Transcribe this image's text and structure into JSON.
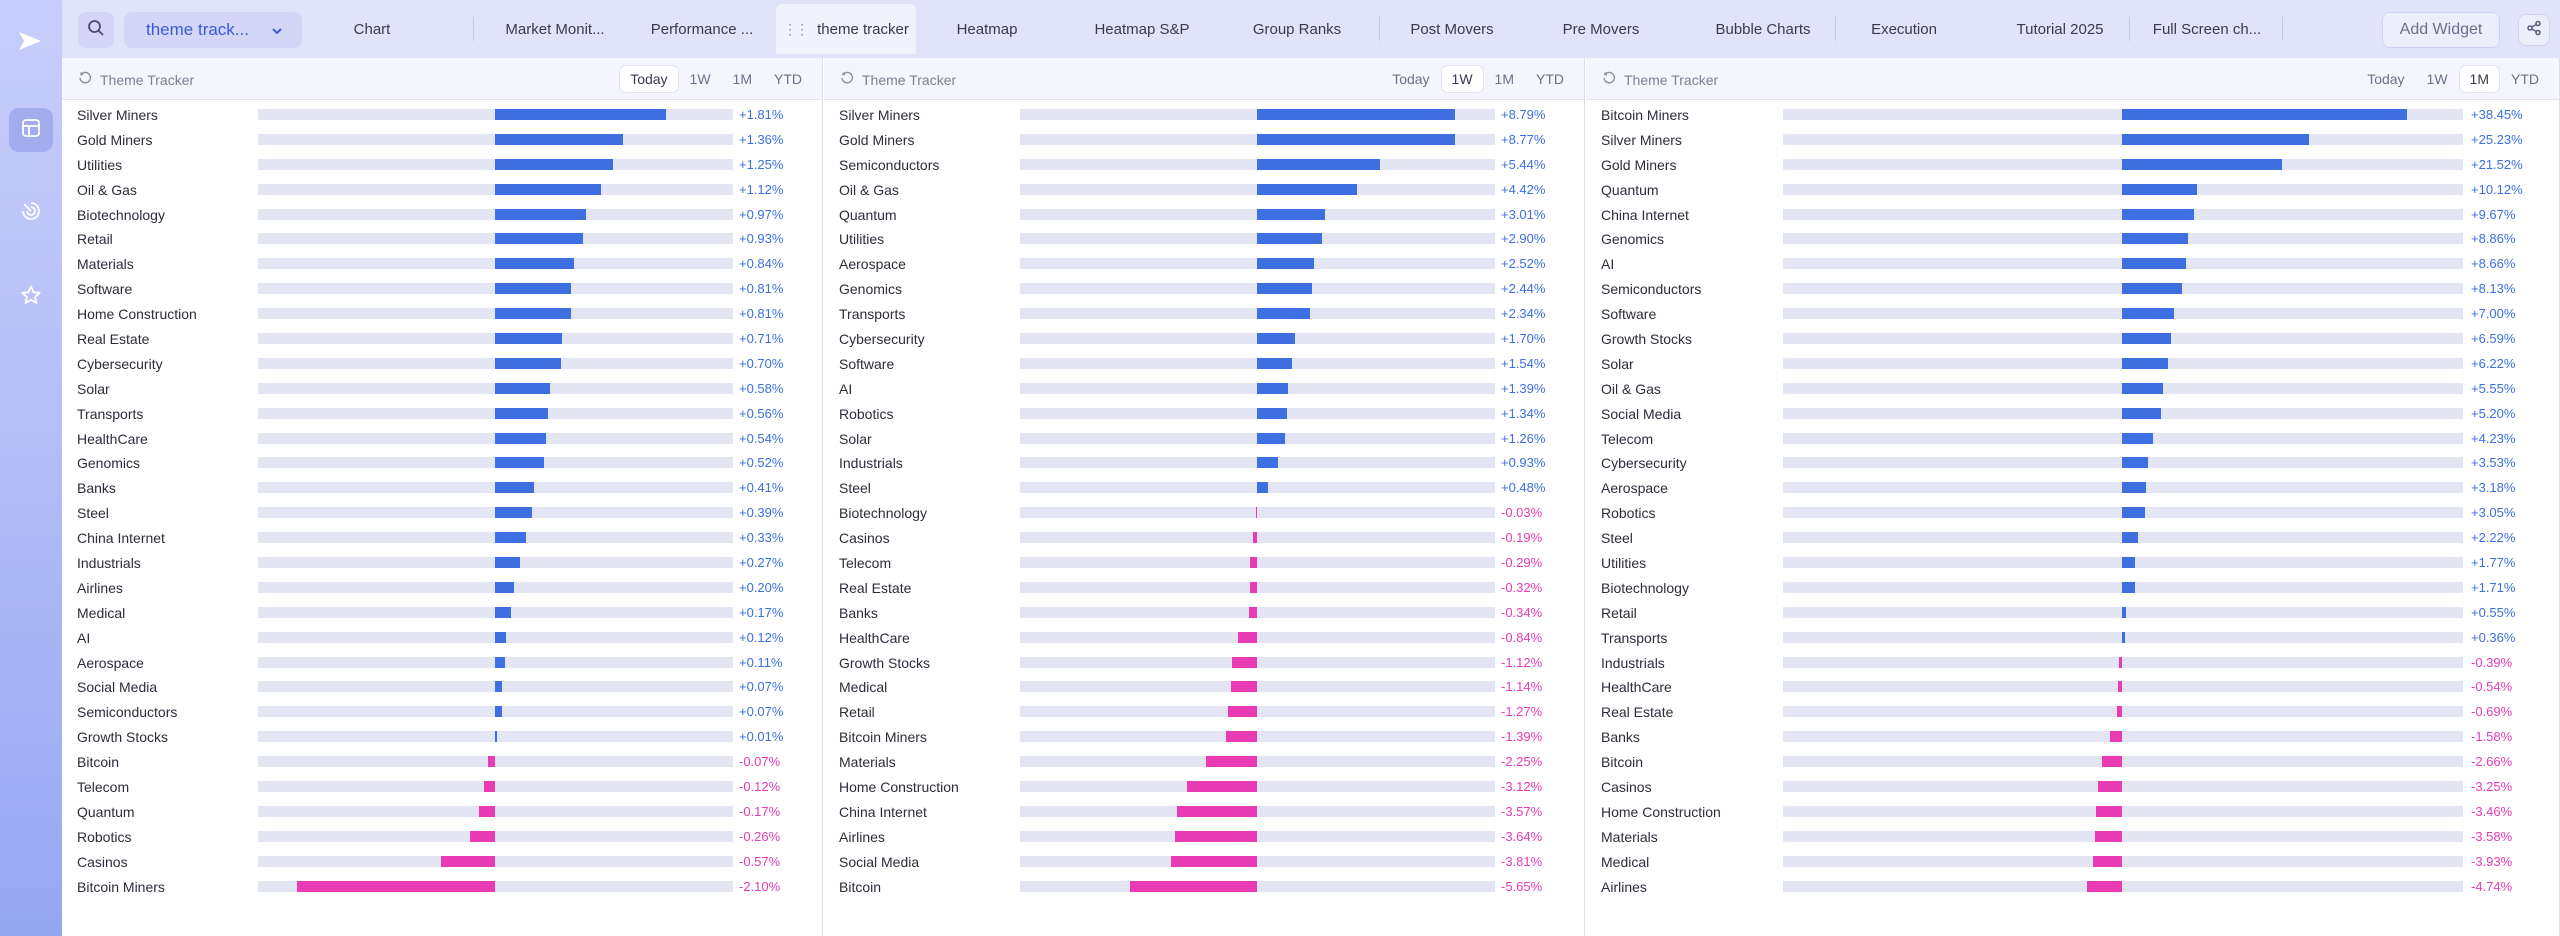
{
  "sidebar": {
    "logo": "play-logo-icon",
    "items": [
      {
        "icon": "dashboard-icon",
        "active": true
      },
      {
        "icon": "radar-icon",
        "active": false
      },
      {
        "icon": "star-icon",
        "active": false
      }
    ]
  },
  "topbar": {
    "dashboard_select": "theme track...",
    "tabs": [
      "Chart",
      "Market Monit...",
      "Performance ...",
      "theme tracker",
      "Heatmap",
      "Heatmap S&P",
      "Group Ranks",
      "Post Movers",
      "Pre Movers",
      "Bubble Charts",
      "Execution",
      "Tutorial 2025",
      "Full Screen ch..."
    ],
    "active_tab": "theme tracker",
    "add_widget": "Add Widget"
  },
  "colors": {
    "positive": "#3d6fe0",
    "negative": "#e83bb4",
    "track": "#e4e5f3"
  },
  "panels": [
    {
      "title": "Theme Tracker",
      "periods": [
        "Today",
        "1W",
        "1M",
        "YTD"
      ],
      "active_period": "Today",
      "scale": 2.1,
      "rows": [
        {
          "label": "Silver Miners",
          "value": 1.81,
          "display": "+1.81%"
        },
        {
          "label": "Gold Miners",
          "value": 1.36,
          "display": "+1.36%"
        },
        {
          "label": "Utilities",
          "value": 1.25,
          "display": "+1.25%"
        },
        {
          "label": "Oil & Gas",
          "value": 1.12,
          "display": "+1.12%"
        },
        {
          "label": "Biotechnology",
          "value": 0.97,
          "display": "+0.97%"
        },
        {
          "label": "Retail",
          "value": 0.93,
          "display": "+0.93%"
        },
        {
          "label": "Materials",
          "value": 0.84,
          "display": "+0.84%"
        },
        {
          "label": "Software",
          "value": 0.81,
          "display": "+0.81%"
        },
        {
          "label": "Home Construction",
          "value": 0.81,
          "display": "+0.81%"
        },
        {
          "label": "Real Estate",
          "value": 0.71,
          "display": "+0.71%"
        },
        {
          "label": "Cybersecurity",
          "value": 0.7,
          "display": "+0.70%"
        },
        {
          "label": "Solar",
          "value": 0.58,
          "display": "+0.58%"
        },
        {
          "label": "Transports",
          "value": 0.56,
          "display": "+0.56%"
        },
        {
          "label": "HealthCare",
          "value": 0.54,
          "display": "+0.54%"
        },
        {
          "label": "Genomics",
          "value": 0.52,
          "display": "+0.52%"
        },
        {
          "label": "Banks",
          "value": 0.41,
          "display": "+0.41%"
        },
        {
          "label": "Steel",
          "value": 0.39,
          "display": "+0.39%"
        },
        {
          "label": "China Internet",
          "value": 0.33,
          "display": "+0.33%"
        },
        {
          "label": "Industrials",
          "value": 0.27,
          "display": "+0.27%"
        },
        {
          "label": "Airlines",
          "value": 0.2,
          "display": "+0.20%"
        },
        {
          "label": "Medical",
          "value": 0.17,
          "display": "+0.17%"
        },
        {
          "label": "AI",
          "value": 0.12,
          "display": "+0.12%"
        },
        {
          "label": "Aerospace",
          "value": 0.11,
          "display": "+0.11%"
        },
        {
          "label": "Social Media",
          "value": 0.07,
          "display": "+0.07%"
        },
        {
          "label": "Semiconductors",
          "value": 0.07,
          "display": "+0.07%"
        },
        {
          "label": "Growth Stocks",
          "value": 0.01,
          "display": "+0.01%"
        },
        {
          "label": "Bitcoin",
          "value": -0.07,
          "display": "-0.07%"
        },
        {
          "label": "Telecom",
          "value": -0.12,
          "display": "-0.12%"
        },
        {
          "label": "Quantum",
          "value": -0.17,
          "display": "-0.17%"
        },
        {
          "label": "Robotics",
          "value": -0.26,
          "display": "-0.26%"
        },
        {
          "label": "Casinos",
          "value": -0.57,
          "display": "-0.57%"
        },
        {
          "label": "Bitcoin Miners",
          "value": -2.1,
          "display": "-2.10%"
        }
      ]
    },
    {
      "title": "Theme Tracker",
      "periods": [
        "Today",
        "1W",
        "1M",
        "YTD"
      ],
      "active_period": "1W",
      "scale": 8.79,
      "rows": [
        {
          "label": "Silver Miners",
          "value": 8.79,
          "display": "+8.79%"
        },
        {
          "label": "Gold Miners",
          "value": 8.77,
          "display": "+8.77%"
        },
        {
          "label": "Semiconductors",
          "value": 5.44,
          "display": "+5.44%"
        },
        {
          "label": "Oil & Gas",
          "value": 4.42,
          "display": "+4.42%"
        },
        {
          "label": "Quantum",
          "value": 3.01,
          "display": "+3.01%"
        },
        {
          "label": "Utilities",
          "value": 2.9,
          "display": "+2.90%"
        },
        {
          "label": "Aerospace",
          "value": 2.52,
          "display": "+2.52%"
        },
        {
          "label": "Genomics",
          "value": 2.44,
          "display": "+2.44%"
        },
        {
          "label": "Transports",
          "value": 2.34,
          "display": "+2.34%"
        },
        {
          "label": "Cybersecurity",
          "value": 1.7,
          "display": "+1.70%"
        },
        {
          "label": "Software",
          "value": 1.54,
          "display": "+1.54%"
        },
        {
          "label": "AI",
          "value": 1.39,
          "display": "+1.39%"
        },
        {
          "label": "Robotics",
          "value": 1.34,
          "display": "+1.34%"
        },
        {
          "label": "Solar",
          "value": 1.26,
          "display": "+1.26%"
        },
        {
          "label": "Industrials",
          "value": 0.93,
          "display": "+0.93%"
        },
        {
          "label": "Steel",
          "value": 0.48,
          "display": "+0.48%"
        },
        {
          "label": "Biotechnology",
          "value": -0.03,
          "display": "-0.03%"
        },
        {
          "label": "Casinos",
          "value": -0.19,
          "display": "-0.19%"
        },
        {
          "label": "Telecom",
          "value": -0.29,
          "display": "-0.29%"
        },
        {
          "label": "Real Estate",
          "value": -0.32,
          "display": "-0.32%"
        },
        {
          "label": "Banks",
          "value": -0.34,
          "display": "-0.34%"
        },
        {
          "label": "HealthCare",
          "value": -0.84,
          "display": "-0.84%"
        },
        {
          "label": "Growth Stocks",
          "value": -1.12,
          "display": "-1.12%"
        },
        {
          "label": "Medical",
          "value": -1.14,
          "display": "-1.14%"
        },
        {
          "label": "Retail",
          "value": -1.27,
          "display": "-1.27%"
        },
        {
          "label": "Bitcoin Miners",
          "value": -1.39,
          "display": "-1.39%"
        },
        {
          "label": "Materials",
          "value": -2.25,
          "display": "-2.25%"
        },
        {
          "label": "Home Construction",
          "value": -3.12,
          "display": "-3.12%"
        },
        {
          "label": "China Internet",
          "value": -3.57,
          "display": "-3.57%"
        },
        {
          "label": "Airlines",
          "value": -3.64,
          "display": "-3.64%"
        },
        {
          "label": "Social Media",
          "value": -3.81,
          "display": "-3.81%"
        },
        {
          "label": "Bitcoin",
          "value": -5.65,
          "display": "-5.65%"
        }
      ]
    },
    {
      "title": "Theme Tracker",
      "periods": [
        "Today",
        "1W",
        "1M",
        "YTD"
      ],
      "active_period": "1M",
      "scale": 38.45,
      "rows": [
        {
          "label": "Bitcoin Miners",
          "value": 38.45,
          "display": "+38.45%"
        },
        {
          "label": "Silver Miners",
          "value": 25.23,
          "display": "+25.23%"
        },
        {
          "label": "Gold Miners",
          "value": 21.52,
          "display": "+21.52%"
        },
        {
          "label": "Quantum",
          "value": 10.12,
          "display": "+10.12%"
        },
        {
          "label": "China Internet",
          "value": 9.67,
          "display": "+9.67%"
        },
        {
          "label": "Genomics",
          "value": 8.86,
          "display": "+8.86%"
        },
        {
          "label": "AI",
          "value": 8.66,
          "display": "+8.66%"
        },
        {
          "label": "Semiconductors",
          "value": 8.13,
          "display": "+8.13%"
        },
        {
          "label": "Software",
          "value": 7.0,
          "display": "+7.00%"
        },
        {
          "label": "Growth Stocks",
          "value": 6.59,
          "display": "+6.59%"
        },
        {
          "label": "Solar",
          "value": 6.22,
          "display": "+6.22%"
        },
        {
          "label": "Oil & Gas",
          "value": 5.55,
          "display": "+5.55%"
        },
        {
          "label": "Social Media",
          "value": 5.2,
          "display": "+5.20%"
        },
        {
          "label": "Telecom",
          "value": 4.23,
          "display": "+4.23%"
        },
        {
          "label": "Cybersecurity",
          "value": 3.53,
          "display": "+3.53%"
        },
        {
          "label": "Aerospace",
          "value": 3.18,
          "display": "+3.18%"
        },
        {
          "label": "Robotics",
          "value": 3.05,
          "display": "+3.05%"
        },
        {
          "label": "Steel",
          "value": 2.22,
          "display": "+2.22%"
        },
        {
          "label": "Utilities",
          "value": 1.77,
          "display": "+1.77%"
        },
        {
          "label": "Biotechnology",
          "value": 1.71,
          "display": "+1.71%"
        },
        {
          "label": "Retail",
          "value": 0.55,
          "display": "+0.55%"
        },
        {
          "label": "Transports",
          "value": 0.36,
          "display": "+0.36%"
        },
        {
          "label": "Industrials",
          "value": -0.39,
          "display": "-0.39%"
        },
        {
          "label": "HealthCare",
          "value": -0.54,
          "display": "-0.54%"
        },
        {
          "label": "Real Estate",
          "value": -0.69,
          "display": "-0.69%"
        },
        {
          "label": "Banks",
          "value": -1.58,
          "display": "-1.58%"
        },
        {
          "label": "Bitcoin",
          "value": -2.66,
          "display": "-2.66%"
        },
        {
          "label": "Casinos",
          "value": -3.25,
          "display": "-3.25%"
        },
        {
          "label": "Home Construction",
          "value": -3.46,
          "display": "-3.46%"
        },
        {
          "label": "Materials",
          "value": -3.58,
          "display": "-3.58%"
        },
        {
          "label": "Medical",
          "value": -3.93,
          "display": "-3.93%"
        },
        {
          "label": "Airlines",
          "value": -4.74,
          "display": "-4.74%"
        }
      ]
    }
  ]
}
